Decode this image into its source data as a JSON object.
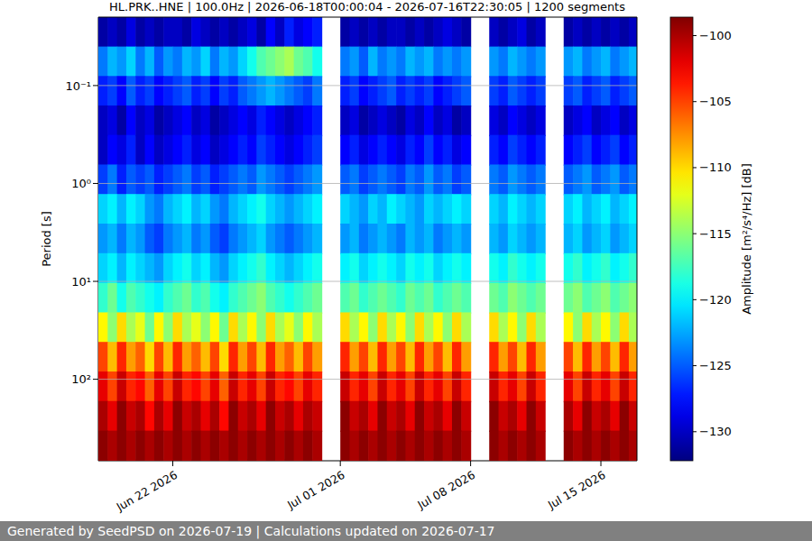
{
  "chart_data": {
    "type": "heatmap",
    "title": "HL.PRK..HNE | 100.0Hz | 2026-06-18T00:00:04 - 2026-07-16T22:30:05 | 1200 segments",
    "y_label": "Period [s]",
    "caption": "Generated by SeedPSD on 2026-07-19 | Calculations updated on 2026-07-17",
    "log": "y",
    "grid": true,
    "x": [
      "2026-06-18T06:00",
      "2026-06-18T18:00",
      "2026-06-19T06:00",
      "2026-06-19T18:00",
      "2026-06-20T06:00",
      "2026-06-20T18:00",
      "2026-06-21T06:00",
      "2026-06-21T18:00",
      "2026-06-22T06:00",
      "2026-06-22T18:00",
      "2026-06-23T06:00",
      "2026-06-23T18:00",
      "2026-06-24T06:00",
      "2026-06-24T18:00",
      "2026-06-25T06:00",
      "2026-06-25T18:00",
      "2026-06-26T06:00",
      "2026-06-26T18:00",
      "2026-06-27T06:00",
      "2026-06-27T18:00",
      "2026-06-28T06:00",
      "2026-06-28T18:00",
      "2026-06-29T06:00",
      "2026-06-29T18:00",
      "2026-06-30T06:00",
      "2026-06-30T18:00",
      "2026-07-01T06:00",
      "2026-07-01T18:00",
      "2026-07-02T06:00",
      "2026-07-02T18:00",
      "2026-07-03T06:00",
      "2026-07-03T18:00",
      "2026-07-04T06:00",
      "2026-07-04T18:00",
      "2026-07-05T06:00",
      "2026-07-05T18:00",
      "2026-07-06T06:00",
      "2026-07-06T18:00",
      "2026-07-07T06:00",
      "2026-07-07T18:00",
      "2026-07-08T06:00",
      "2026-07-08T18:00",
      "2026-07-09T06:00",
      "2026-07-09T18:00",
      "2026-07-10T06:00",
      "2026-07-10T18:00",
      "2026-07-11T06:00",
      "2026-07-11T18:00",
      "2026-07-12T06:00",
      "2026-07-12T18:00",
      "2026-07-13T06:00",
      "2026-07-13T18:00",
      "2026-07-14T06:00",
      "2026-07-14T18:00",
      "2026-07-15T06:00",
      "2026-07-15T18:00",
      "2026-07-16T06:00",
      "2026-07-16T18:00"
    ],
    "y": [
      0.028,
      0.057,
      0.114,
      0.228,
      0.456,
      0.914,
      1.83,
      3.67,
      7.36,
      14.8,
      29.6,
      59.3,
      119,
      238,
      478
    ],
    "xlim": [
      "2026-06-18T00:00:04",
      "2026-07-16T22:30:05"
    ],
    "xticks": [
      {
        "value": "2026-06-22T00:00",
        "label": "Jun 22 2026"
      },
      {
        "value": "2026-07-01T00:00",
        "label": "Jul 01 2026"
      },
      {
        "value": "2026-07-08T00:00",
        "label": "Jul 08 2026"
      },
      {
        "value": "2026-07-15T00:00",
        "label": "Jul 15 2026"
      }
    ],
    "ylim": [
      0.02,
      680
    ],
    "yticks": [
      {
        "value": 0.1,
        "label": "10⁻¹"
      },
      {
        "value": 1,
        "label": "10⁰"
      },
      {
        "value": 10,
        "label": "10¹"
      },
      {
        "value": 100,
        "label": "10²"
      }
    ],
    "cells": [
      [
        -131,
        -130,
        -131,
        -129,
        -131,
        -130,
        -131,
        -130,
        -130,
        -131,
        -129,
        -130,
        -131,
        -130,
        -131,
        -130,
        -129,
        -131,
        -128,
        -130,
        -127,
        -129,
        -128,
        -127,
        null,
        null,
        -131,
        -130,
        -131,
        -130,
        -131,
        -130,
        -130,
        -131,
        -130,
        -131,
        -130,
        -129,
        -130,
        -131,
        null,
        null,
        -130,
        -131,
        -130,
        -129,
        -131,
        -130,
        null,
        null,
        -131,
        -130,
        -131,
        -130,
        -131,
        -130,
        -131,
        -130
      ],
      [
        -124,
        -122,
        -123,
        -121,
        -124,
        -122,
        -125,
        -123,
        -124,
        -122,
        -123,
        -121,
        -124,
        -122,
        -123,
        -121,
        -119,
        -117,
        -116,
        -115,
        -114,
        -116,
        -117,
        -119,
        null,
        null,
        -124,
        -123,
        -125,
        -122,
        -124,
        -123,
        -124,
        -122,
        -123,
        -122,
        -124,
        -123,
        -124,
        -123,
        null,
        null,
        -123,
        -124,
        -122,
        -123,
        -124,
        -123,
        null,
        null,
        -123,
        -122,
        -124,
        -123,
        -122,
        -124,
        -123,
        -122
      ],
      [
        -127,
        -126,
        -128,
        -125,
        -127,
        -126,
        -128,
        -127,
        -126,
        -125,
        -127,
        -126,
        -128,
        -126,
        -127,
        -125,
        -124,
        -123,
        -122,
        -123,
        -124,
        -125,
        -126,
        -124,
        null,
        null,
        -127,
        -126,
        -128,
        -127,
        -126,
        -125,
        -127,
        -126,
        -127,
        -126,
        -128,
        -127,
        -126,
        -125,
        null,
        null,
        -126,
        -127,
        -125,
        -126,
        -127,
        -126,
        null,
        null,
        -126,
        -125,
        -127,
        -126,
        -125,
        -127,
        -126,
        -125
      ],
      [
        -130,
        -129,
        -131,
        -128,
        -130,
        -129,
        -131,
        -130,
        -129,
        -128,
        -130,
        -129,
        -131,
        -130,
        -129,
        -128,
        -129,
        -127,
        -128,
        -129,
        -130,
        -129,
        -128,
        -127,
        null,
        null,
        -130,
        -129,
        -131,
        -130,
        -129,
        -130,
        -131,
        -129,
        -130,
        -128,
        -130,
        -129,
        -131,
        -130,
        null,
        null,
        -129,
        -130,
        -128,
        -129,
        -130,
        -129,
        null,
        null,
        -130,
        -129,
        -128,
        -130,
        -129,
        -128,
        -130,
        -129
      ],
      [
        -130,
        -128,
        -129,
        -127,
        -130,
        -128,
        -130,
        -129,
        -128,
        -127,
        -129,
        -128,
        -130,
        -129,
        -128,
        -127,
        -128,
        -126,
        -127,
        -128,
        -129,
        -128,
        -127,
        -126,
        null,
        null,
        -128,
        -127,
        -129,
        -128,
        -127,
        -128,
        -129,
        -127,
        -128,
        -126,
        -128,
        -127,
        -129,
        -128,
        null,
        null,
        -127,
        -128,
        -126,
        -127,
        -128,
        -127,
        null,
        null,
        -128,
        -127,
        -126,
        -128,
        -127,
        -126,
        -128,
        -127
      ],
      [
        -126,
        -124,
        -127,
        -125,
        -126,
        -125,
        -127,
        -126,
        -125,
        -124,
        -126,
        -125,
        -127,
        -126,
        -125,
        -124,
        -125,
        -123,
        -124,
        -125,
        -126,
        -125,
        -124,
        -123,
        null,
        null,
        -125,
        -124,
        -126,
        -125,
        -124,
        -125,
        -126,
        -124,
        -125,
        -123,
        -125,
        -124,
        -126,
        -125,
        null,
        null,
        -124,
        -125,
        -123,
        -124,
        -125,
        -124,
        null,
        null,
        -125,
        -124,
        -123,
        -125,
        -124,
        -123,
        -125,
        -124
      ],
      [
        -121,
        -120,
        -122,
        -120,
        -121,
        -123,
        -124,
        -122,
        -121,
        -120,
        -122,
        -121,
        -123,
        -124,
        -122,
        -121,
        -120,
        -119,
        -121,
        -122,
        -123,
        -122,
        -121,
        -120,
        null,
        null,
        -121,
        -122,
        -123,
        -121,
        -122,
        -120,
        -121,
        -122,
        -123,
        -121,
        -122,
        -121,
        -120,
        -121,
        null,
        null,
        -121,
        -122,
        -120,
        -121,
        -122,
        -121,
        null,
        null,
        -121,
        -120,
        -122,
        -121,
        -120,
        -122,
        -121,
        -120
      ],
      [
        -123,
        -122,
        -124,
        -122,
        -123,
        -125,
        -126,
        -124,
        -123,
        -122,
        -124,
        -123,
        -125,
        -126,
        -124,
        -123,
        -122,
        -121,
        -123,
        -124,
        -125,
        -124,
        -123,
        -122,
        null,
        null,
        -123,
        -122,
        -124,
        -123,
        -122,
        -123,
        -124,
        -122,
        -123,
        -122,
        -124,
        -123,
        -122,
        -123,
        null,
        null,
        -122,
        -123,
        -121,
        -122,
        -123,
        -122,
        null,
        null,
        -122,
        -121,
        -123,
        -122,
        -121,
        -123,
        -122,
        -121
      ],
      [
        -121,
        -120,
        -122,
        -120,
        -121,
        -122,
        -123,
        -121,
        -120,
        -119,
        -121,
        -120,
        -122,
        -123,
        -121,
        -120,
        -119,
        -118,
        -120,
        -121,
        -122,
        -121,
        -120,
        -119,
        null,
        null,
        -120,
        -119,
        -121,
        -120,
        -119,
        -120,
        -121,
        -119,
        -120,
        -119,
        -121,
        -120,
        -119,
        -120,
        null,
        null,
        -119,
        -120,
        -118,
        -119,
        -120,
        -119,
        null,
        null,
        -119,
        -118,
        -120,
        -119,
        -118,
        -120,
        -119,
        -118
      ],
      [
        -118,
        -116,
        -119,
        -117,
        -118,
        -119,
        -120,
        -118,
        -117,
        -116,
        -118,
        -117,
        -119,
        -120,
        -118,
        -117,
        -116,
        -115,
        -117,
        -118,
        -119,
        -118,
        -117,
        -116,
        null,
        null,
        -117,
        -116,
        -118,
        -117,
        -116,
        -117,
        -118,
        -116,
        -117,
        -116,
        -118,
        -117,
        -116,
        -117,
        null,
        null,
        -116,
        -117,
        -115,
        -116,
        -117,
        -116,
        null,
        null,
        -116,
        -115,
        -117,
        -116,
        -115,
        -117,
        -116,
        -115
      ],
      [
        -111,
        -115,
        -110,
        -114,
        -112,
        -116,
        -111,
        -115,
        -110,
        -114,
        -112,
        -115,
        -111,
        -116,
        -110,
        -114,
        -111,
        -115,
        -110,
        -114,
        -112,
        -115,
        -111,
        -114,
        null,
        null,
        -110,
        -114,
        -111,
        -115,
        -110,
        -114,
        -111,
        -115,
        -110,
        -114,
        -111,
        -115,
        -110,
        -114,
        null,
        null,
        -110,
        -114,
        -111,
        -115,
        -110,
        -114,
        null,
        null,
        -111,
        -115,
        -110,
        -114,
        -111,
        -115,
        -110,
        -114
      ],
      [
        -105,
        -109,
        -104,
        -108,
        -106,
        -110,
        -105,
        -109,
        -104,
        -108,
        -106,
        -109,
        -105,
        -110,
        -104,
        -108,
        -105,
        -109,
        -104,
        -108,
        -106,
        -109,
        -105,
        -108,
        null,
        null,
        -104,
        -108,
        -105,
        -109,
        -104,
        -108,
        -105,
        -109,
        -104,
        -108,
        -105,
        -109,
        -104,
        -108,
        null,
        null,
        -104,
        -108,
        -105,
        -109,
        -104,
        -108,
        null,
        null,
        -105,
        -109,
        -104,
        -108,
        -105,
        -109,
        -104,
        -108
      ],
      [
        -102,
        -105,
        -101,
        -104,
        -103,
        -106,
        -102,
        -105,
        -101,
        -104,
        -103,
        -105,
        -102,
        -106,
        -101,
        -104,
        -102,
        -105,
        -101,
        -104,
        -103,
        -105,
        -102,
        -104,
        null,
        null,
        -101,
        -104,
        -102,
        -105,
        -101,
        -104,
        -102,
        -105,
        -101,
        -104,
        -102,
        -105,
        -101,
        -104,
        null,
        null,
        -101,
        -104,
        -102,
        -105,
        -101,
        -104,
        null,
        null,
        -102,
        -105,
        -101,
        -104,
        -102,
        -105,
        -101,
        -104
      ],
      [
        -100,
        -102,
        -99,
        -101,
        -100,
        -103,
        -100,
        -102,
        -99,
        -101,
        -100,
        -102,
        -100,
        -103,
        -99,
        -101,
        -100,
        -102,
        -99,
        -101,
        -100,
        -102,
        -100,
        -101,
        null,
        null,
        -99,
        -101,
        -100,
        -102,
        -99,
        -101,
        -100,
        -102,
        -99,
        -101,
        -100,
        -102,
        -99,
        -101,
        null,
        null,
        -99,
        -101,
        -100,
        -102,
        -99,
        -101,
        null,
        null,
        -100,
        -102,
        -99,
        -101,
        -100,
        -102,
        -99,
        -101
      ],
      [
        -99,
        -100,
        -99,
        -100,
        -99,
        -100,
        -99,
        -100,
        -99,
        -100,
        -99,
        -100,
        -99,
        -100,
        -99,
        -100,
        -99,
        -100,
        -99,
        -100,
        -99,
        -100,
        -99,
        -100,
        null,
        null,
        -99,
        -100,
        -99,
        -100,
        -99,
        -100,
        -99,
        -100,
        -99,
        -100,
        -99,
        -100,
        -99,
        -100,
        null,
        null,
        -99,
        -100,
        -99,
        -100,
        -99,
        -100,
        null,
        null,
        -99,
        -100,
        -99,
        -100,
        -99,
        -100,
        -99,
        -100
      ]
    ],
    "colorbar": {
      "label": "Amplitude [m²/s⁴/Hz] [dB]",
      "range": [
        -132.2,
        -98.6
      ],
      "ticks": [
        -130,
        -125,
        -120,
        -115,
        -110,
        -105,
        -100
      ]
    }
  }
}
